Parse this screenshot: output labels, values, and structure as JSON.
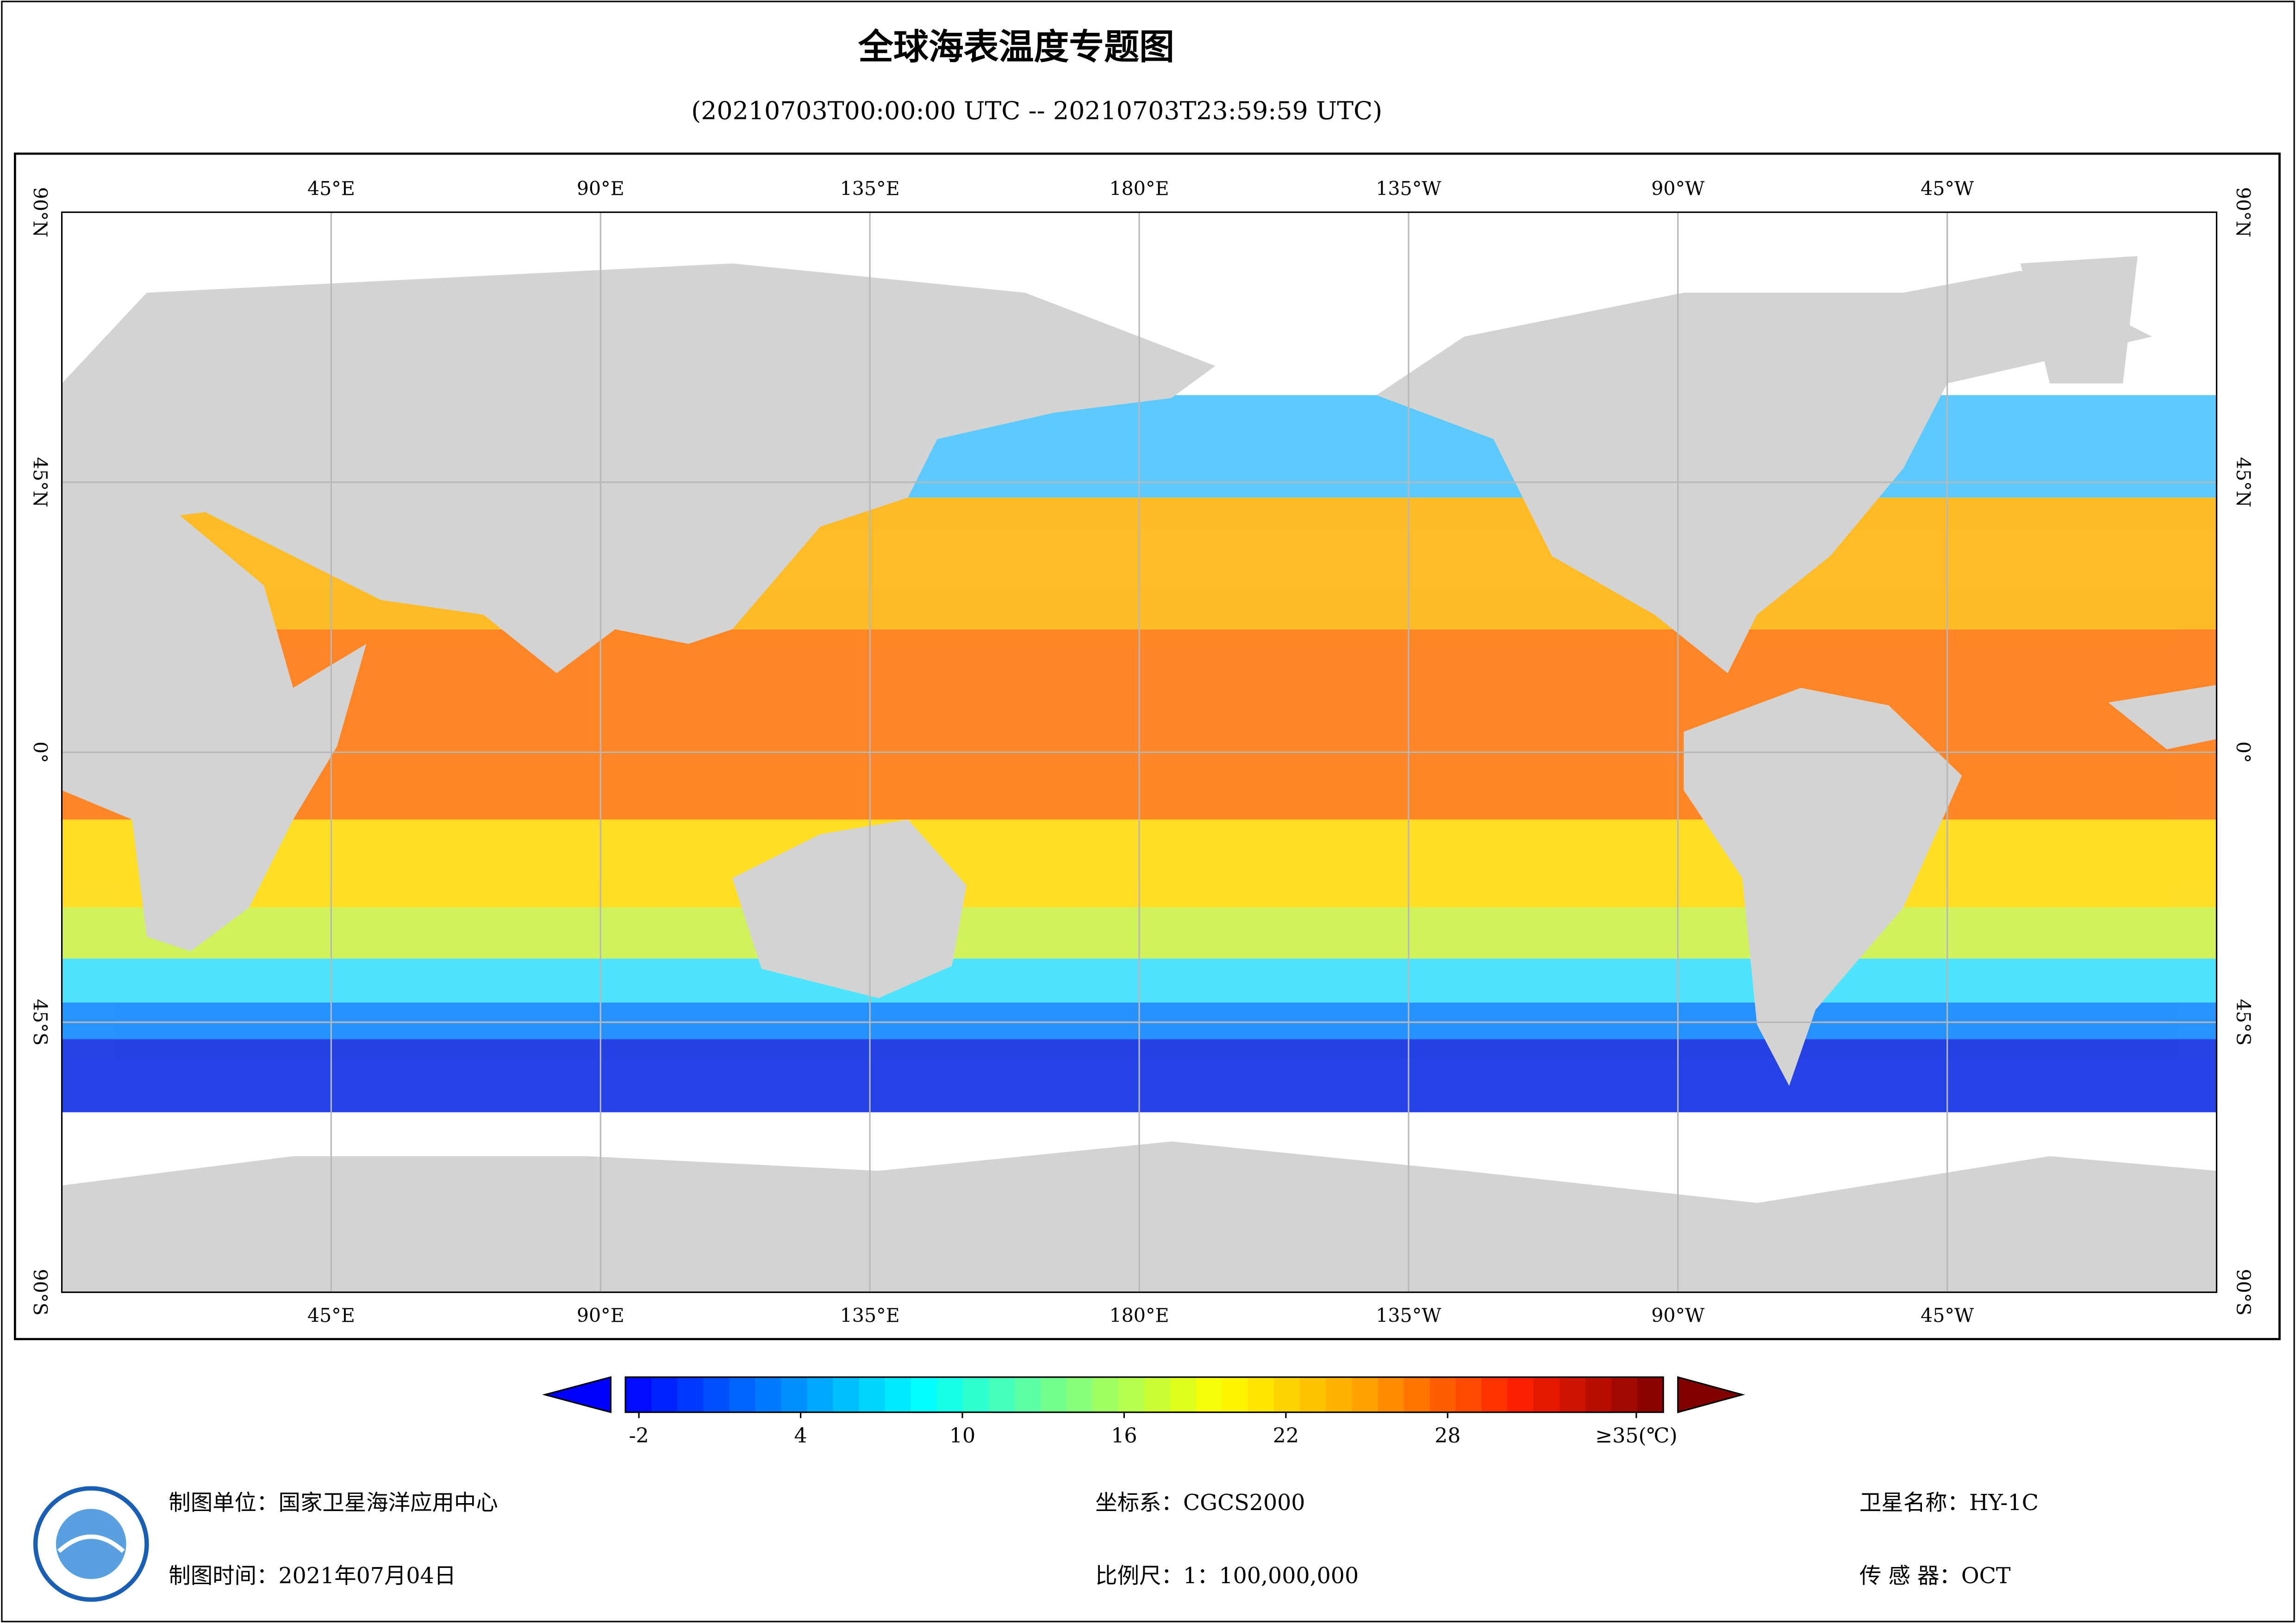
{
  "header": {
    "title": "全球海表温度专题图",
    "subtitle": "(20210703T00:00:00 UTC -- 20210703T23:59:59 UTC)"
  },
  "map": {
    "lonlim": [
      0,
      360
    ],
    "latlim": [
      -90,
      90
    ],
    "lonticks": [
      {
        "value": 45,
        "label": "45°E"
      },
      {
        "value": 90,
        "label": "90°E"
      },
      {
        "value": 135,
        "label": "135°E"
      },
      {
        "value": 180,
        "label": "180°E"
      },
      {
        "value": 225,
        "label": "135°W"
      },
      {
        "value": 270,
        "label": "90°W"
      },
      {
        "value": 315,
        "label": "45°W"
      }
    ],
    "latticks": [
      {
        "value": 90,
        "label": "90°N"
      },
      {
        "value": 45,
        "label": "45°N"
      },
      {
        "value": 0,
        "label": "0°"
      },
      {
        "value": -45,
        "label": "45°S"
      },
      {
        "value": -90,
        "label": "90°S"
      }
    ],
    "grid": true
  },
  "colorbar": {
    "lim": [
      -2.5,
      36
    ],
    "ticks": [
      -2,
      4,
      10,
      16,
      22,
      28,
      {
        "value": 35,
        "label": "≥35(℃)"
      }
    ],
    "colors": [
      "#0000ff",
      "#0080ff",
      "#00ffff",
      "#80ff80",
      "#ffff00",
      "#ffa000",
      "#ff2000",
      "#800000"
    ],
    "steps": 40
  },
  "footer": {
    "unit": "制图单位：国家卫星海洋应用中心",
    "date": "制图时间：2021年07月04日",
    "crs": "坐标系：CGCS2000",
    "scale": "比例尺：1：100,000,000",
    "satellite": "卫星名称：HY-1C",
    "sensor": "传 感 器：OCT"
  }
}
